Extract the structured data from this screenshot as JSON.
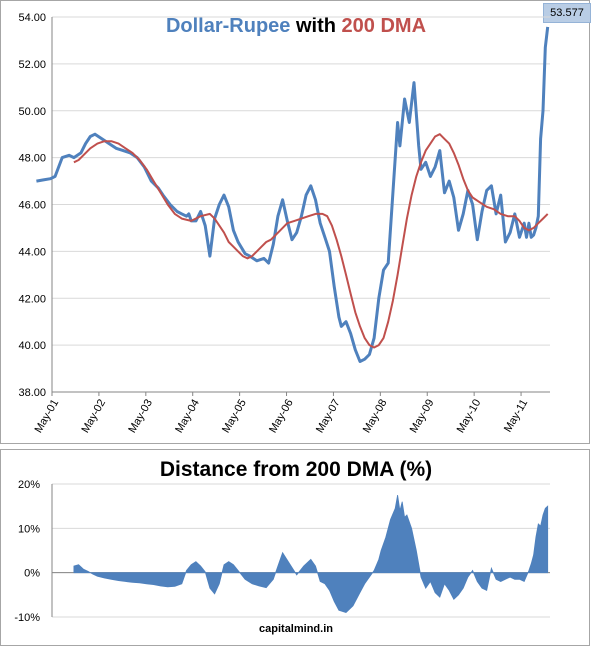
{
  "chart_data": [
    {
      "type": "line",
      "title": {
        "part1": "Dollar-Rupee",
        "part2": "with",
        "part3": "200 DMA"
      },
      "ylim": [
        38,
        54
      ],
      "y_ticks": [
        "38.00",
        "40.00",
        "42.00",
        "44.00",
        "46.00",
        "48.00",
        "50.00",
        "52.00",
        "54.00"
      ],
      "x_ticks": [
        "May-01",
        "May-02",
        "May-03",
        "May-04",
        "May-05",
        "May-06",
        "May-07",
        "May-08",
        "May-09",
        "May-10",
        "May-11"
      ],
      "last_value_label": "53.577",
      "series": [
        {
          "color": "#4f81bd",
          "x": [
            2001.0,
            2001.15,
            2001.3,
            2001.4,
            2001.55,
            2001.7,
            2001.8,
            2001.95,
            2002.05,
            2002.15,
            2002.25,
            2002.4,
            2002.55,
            2002.7,
            2002.85,
            2003.0,
            2003.15,
            2003.3,
            2003.45,
            2003.6,
            2003.7,
            2003.85,
            2004.0,
            2004.1,
            2004.2,
            2004.25,
            2004.3,
            2004.4,
            2004.5,
            2004.6,
            2004.7,
            2004.8,
            2004.9,
            2005.0,
            2005.1,
            2005.2,
            2005.3,
            2005.45,
            2005.55,
            2005.7,
            2005.85,
            2005.95,
            2006.05,
            2006.15,
            2006.25,
            2006.35,
            2006.45,
            2006.55,
            2006.65,
            2006.75,
            2006.85,
            2006.95,
            2007.05,
            2007.15,
            2007.25,
            2007.35,
            2007.45,
            2007.5,
            2007.6,
            2007.7,
            2007.8,
            2007.9,
            2008.0,
            2008.1,
            2008.2,
            2008.3,
            2008.4,
            2008.5,
            2008.6,
            2008.7,
            2008.75,
            2008.85,
            2008.95,
            2009.05,
            2009.15,
            2009.2,
            2009.3,
            2009.4,
            2009.5,
            2009.6,
            2009.7,
            2009.8,
            2009.9,
            2010.0,
            2010.1,
            2010.2,
            2010.3,
            2010.4,
            2010.5,
            2010.6,
            2010.7,
            2010.8,
            2010.9,
            2011.0,
            2011.1,
            2011.2,
            2011.3,
            2011.4,
            2011.45,
            2011.5,
            2011.55,
            2011.6,
            2011.65,
            2011.7,
            2011.75,
            2011.8,
            2011.85,
            2011.9
          ],
          "values": [
            47.0,
            47.05,
            47.1,
            47.2,
            48.0,
            48.1,
            48.0,
            48.2,
            48.6,
            48.9,
            49.0,
            48.8,
            48.6,
            48.4,
            48.3,
            48.2,
            48.0,
            47.6,
            47.0,
            46.7,
            46.4,
            46.0,
            45.7,
            45.6,
            45.5,
            45.6,
            45.3,
            45.3,
            45.7,
            45.1,
            43.8,
            45.4,
            46.0,
            46.4,
            45.9,
            44.9,
            44.4,
            43.9,
            43.8,
            43.6,
            43.7,
            43.5,
            44.3,
            45.5,
            46.2,
            45.3,
            44.5,
            44.8,
            45.5,
            46.4,
            46.8,
            46.2,
            45.2,
            44.6,
            44.0,
            42.5,
            41.2,
            40.8,
            41.0,
            40.5,
            39.8,
            39.3,
            39.4,
            39.6,
            40.3,
            42.0,
            43.2,
            43.5,
            46.5,
            49.5,
            48.5,
            50.5,
            49.5,
            51.2,
            48.5,
            47.5,
            47.8,
            47.2,
            47.6,
            48.3,
            46.5,
            47.0,
            46.3,
            44.9,
            45.6,
            46.6,
            46.0,
            44.5,
            45.7,
            46.6,
            46.8,
            45.6,
            46.4,
            44.4,
            44.8,
            45.6,
            44.6,
            45.2,
            44.6,
            45.2,
            44.6,
            44.7,
            45.0,
            45.5,
            48.8,
            50.0,
            52.7,
            53.577
          ]
        },
        {
          "color": "#c0504d",
          "x": [
            2001.8,
            2001.9,
            2002.0,
            2002.15,
            2002.3,
            2002.45,
            2002.6,
            2002.75,
            2002.9,
            2003.05,
            2003.2,
            2003.35,
            2003.5,
            2003.65,
            2003.8,
            2003.95,
            2004.1,
            2004.3,
            2004.5,
            2004.7,
            2004.8,
            2004.9,
            2005.0,
            2005.1,
            2005.2,
            2005.3,
            2005.4,
            2005.5,
            2005.6,
            2005.7,
            2005.8,
            2005.9,
            2006.0,
            2006.1,
            2006.2,
            2006.35,
            2006.5,
            2006.65,
            2006.8,
            2006.95,
            2007.1,
            2007.2,
            2007.3,
            2007.4,
            2007.5,
            2007.6,
            2007.7,
            2007.8,
            2007.9,
            2008.0,
            2008.1,
            2008.2,
            2008.3,
            2008.4,
            2008.5,
            2008.6,
            2008.7,
            2008.8,
            2008.9,
            2009.0,
            2009.1,
            2009.2,
            2009.3,
            2009.4,
            2009.5,
            2009.6,
            2009.7,
            2009.8,
            2009.9,
            2010.0,
            2010.1,
            2010.2,
            2010.3,
            2010.45,
            2010.6,
            2010.75,
            2010.9,
            2011.05,
            2011.2,
            2011.3,
            2011.4,
            2011.5,
            2011.6,
            2011.7,
            2011.8,
            2011.9
          ],
          "values": [
            47.8,
            47.9,
            48.1,
            48.4,
            48.6,
            48.7,
            48.7,
            48.6,
            48.4,
            48.2,
            47.9,
            47.5,
            47.0,
            46.5,
            46.0,
            45.6,
            45.4,
            45.3,
            45.5,
            45.6,
            45.4,
            45.1,
            44.8,
            44.4,
            44.2,
            44.0,
            43.8,
            43.7,
            43.8,
            44.0,
            44.2,
            44.4,
            44.5,
            44.7,
            44.9,
            45.2,
            45.3,
            45.4,
            45.5,
            45.6,
            45.6,
            45.5,
            45.1,
            44.5,
            43.8,
            43.0,
            42.2,
            41.4,
            40.8,
            40.3,
            40.0,
            39.9,
            40.0,
            40.3,
            41.0,
            41.9,
            43.0,
            44.2,
            45.4,
            46.4,
            47.2,
            47.8,
            48.3,
            48.6,
            48.9,
            49.0,
            48.8,
            48.6,
            48.2,
            47.7,
            47.1,
            46.6,
            46.3,
            46.1,
            45.9,
            45.8,
            45.6,
            45.5,
            45.5,
            45.3,
            45.0,
            44.9,
            45.0,
            45.2,
            45.4,
            45.6
          ]
        }
      ]
    },
    {
      "type": "area",
      "title": "Distance from 200 DMA (%)",
      "ylim": [
        -10,
        20
      ],
      "y_ticks": [
        "-10%",
        "0%",
        "10%",
        "20%"
      ],
      "series": [
        {
          "color": "#4f81bd",
          "x": [
            2001.8,
            2001.9,
            2002.0,
            2002.1,
            2002.2,
            2002.3,
            2002.45,
            2002.6,
            2002.75,
            2002.9,
            2003.05,
            2003.2,
            2003.35,
            2003.5,
            2003.65,
            2003.8,
            2003.95,
            2004.1,
            2004.2,
            2004.3,
            2004.4,
            2004.5,
            2004.6,
            2004.7,
            2004.8,
            2004.9,
            2005.0,
            2005.1,
            2005.2,
            2005.3,
            2005.45,
            2005.6,
            2005.75,
            2005.9,
            2006.05,
            2006.15,
            2006.25,
            2006.4,
            2006.55,
            2006.7,
            2006.85,
            2006.95,
            2007.05,
            2007.15,
            2007.25,
            2007.35,
            2007.45,
            2007.6,
            2007.75,
            2007.9,
            2008.0,
            2008.1,
            2008.2,
            2008.3,
            2008.35,
            2008.45,
            2008.55,
            2008.65,
            2008.7,
            2008.75,
            2008.8,
            2008.85,
            2008.9,
            2009.0,
            2009.1,
            2009.2,
            2009.3,
            2009.4,
            2009.5,
            2009.6,
            2009.7,
            2009.8,
            2009.9,
            2010.0,
            2010.1,
            2010.2,
            2010.3,
            2010.4,
            2010.5,
            2010.6,
            2010.7,
            2010.8,
            2010.9,
            2011.0,
            2011.1,
            2011.2,
            2011.3,
            2011.4,
            2011.5,
            2011.55,
            2011.6,
            2011.65,
            2011.7,
            2011.75,
            2011.8,
            2011.85,
            2011.9
          ],
          "values": [
            1.5,
            1.8,
            0.8,
            0.3,
            -0.3,
            -0.8,
            -1.2,
            -1.5,
            -1.8,
            -2.0,
            -2.2,
            -2.3,
            -2.5,
            -2.7,
            -3.0,
            -3.2,
            -3.1,
            -2.5,
            0.5,
            1.8,
            2.5,
            1.5,
            0.2,
            -3.5,
            -4.8,
            -2.5,
            1.8,
            2.5,
            1.8,
            0.5,
            -1.5,
            -2.5,
            -3.0,
            -3.4,
            -1.5,
            1.5,
            4.5,
            2.0,
            -0.5,
            1.5,
            3.0,
            1.5,
            -2.0,
            -2.5,
            -4.0,
            -6.5,
            -8.5,
            -9.0,
            -7.5,
            -4.5,
            -2.5,
            -1.0,
            0.5,
            3.0,
            5.0,
            8.0,
            12.0,
            14.5,
            17.5,
            14.0,
            16.0,
            12.5,
            13.0,
            10.0,
            5.0,
            -1.0,
            -3.5,
            -2.0,
            -4.5,
            -5.5,
            -2.5,
            -4.0,
            -6.0,
            -5.0,
            -3.5,
            -1.0,
            0.5,
            -2.0,
            -3.5,
            -4.0,
            1.0,
            -1.5,
            -2.0,
            -1.5,
            -1.0,
            -1.5,
            -1.5,
            -2.0,
            0.5,
            2.0,
            4.0,
            8.0,
            11.0,
            10.5,
            13.0,
            14.5,
            15.0
          ]
        }
      ]
    }
  ],
  "credit": "capitalmind.in"
}
